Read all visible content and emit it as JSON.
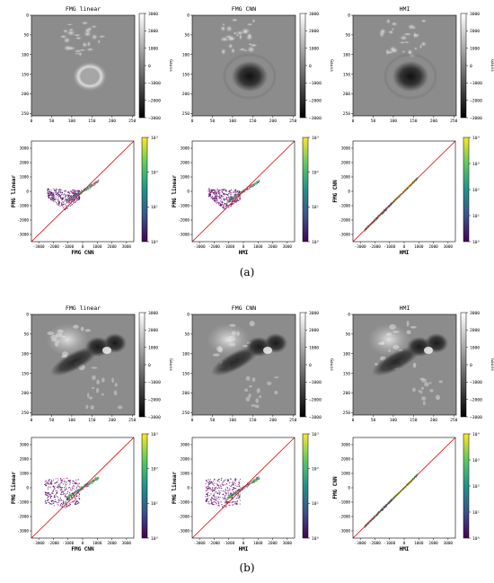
{
  "captions": [
    "(a)",
    "(b)"
  ],
  "colorbars": {
    "map": {
      "ticks": [
        "3000",
        "2000",
        "1000",
        "0",
        "−1000",
        "−2000",
        "−3000"
      ],
      "unit": "Gauss"
    },
    "density": {
      "ticks": [
        "10³",
        "10²",
        "10¹",
        "10⁰"
      ],
      "ticks_hmi": [
        "10⁴",
        "10³",
        "10²",
        "10¹",
        "10⁰"
      ]
    }
  },
  "chart_data": [
    {
      "panel": "a",
      "type": "heatmap",
      "title": "FMG linear",
      "xticks": [
        "0",
        "50",
        "100",
        "150",
        "200",
        "250"
      ],
      "yticks": [
        "250",
        "200",
        "150",
        "100",
        "50",
        "0"
      ],
      "xlim": [
        0,
        256
      ],
      "ylim": [
        0,
        256
      ],
      "colorbar_range": [
        -3000,
        3000
      ],
      "colorbar_label": "Gauss"
    },
    {
      "panel": "a",
      "type": "heatmap",
      "title": "FMG CNN",
      "xticks": [
        "0",
        "50",
        "100",
        "150",
        "200",
        "250"
      ],
      "yticks": [
        "250",
        "200",
        "150",
        "100",
        "50",
        "0"
      ],
      "xlim": [
        0,
        256
      ],
      "ylim": [
        0,
        256
      ],
      "colorbar_range": [
        -3000,
        3000
      ],
      "colorbar_label": "Gauss"
    },
    {
      "panel": "a",
      "type": "heatmap",
      "title": "HMI",
      "xticks": [
        "0",
        "50",
        "100",
        "150",
        "200",
        "250"
      ],
      "yticks": [
        "250",
        "200",
        "150",
        "100",
        "50",
        "0"
      ],
      "xlim": [
        0,
        256
      ],
      "ylim": [
        0,
        256
      ],
      "colorbar_range": [
        -3000,
        3000
      ],
      "colorbar_label": "Gauss"
    },
    {
      "panel": "a",
      "type": "scatter",
      "xlabel": "FMG CNN",
      "ylabel": "FMG linear",
      "xticks": [
        "-3000",
        "-2000",
        "-1000",
        "0",
        "1000",
        "2000",
        "3000"
      ],
      "yticks": [
        "3000",
        "2000",
        "1000",
        "0",
        "-1000",
        "-2000",
        "-3000"
      ],
      "xlim": [
        -3500,
        3500
      ],
      "ylim": [
        -3500,
        3500
      ],
      "colorbar_ticks": [
        "10³",
        "10²",
        "10¹",
        "10⁰"
      ]
    },
    {
      "panel": "a",
      "type": "scatter",
      "xlabel": "HMI",
      "ylabel": "FMG linear",
      "xticks": [
        "-3000",
        "-2000",
        "-1000",
        "0",
        "1000",
        "2000",
        "3000"
      ],
      "yticks": [
        "3000",
        "2000",
        "1000",
        "0",
        "-1000",
        "-2000",
        "-3000"
      ],
      "xlim": [
        -3500,
        3500
      ],
      "ylim": [
        -3500,
        3500
      ],
      "colorbar_ticks": [
        "10³",
        "10²",
        "10¹",
        "10⁰"
      ]
    },
    {
      "panel": "a",
      "type": "scatter",
      "xlabel": "HMI",
      "ylabel": "FMG CNN",
      "xticks": [
        "-3000",
        "-2000",
        "-1000",
        "0",
        "1000",
        "2000",
        "3000"
      ],
      "yticks": [
        "3000",
        "2000",
        "1000",
        "0",
        "-1000",
        "-2000",
        "-3000"
      ],
      "xlim": [
        -3500,
        3500
      ],
      "ylim": [
        -3500,
        3500
      ],
      "colorbar_ticks": [
        "10⁴",
        "10³",
        "10²",
        "10¹",
        "10⁰"
      ]
    },
    {
      "panel": "b",
      "type": "heatmap",
      "title": "FMG linear",
      "xticks": [
        "0",
        "50",
        "100",
        "150",
        "200",
        "250"
      ],
      "yticks": [
        "250",
        "200",
        "150",
        "100",
        "50",
        "0"
      ],
      "xlim": [
        0,
        256
      ],
      "ylim": [
        0,
        256
      ],
      "colorbar_range": [
        -3000,
        3000
      ],
      "colorbar_label": "Gauss"
    },
    {
      "panel": "b",
      "type": "heatmap",
      "title": "FMG CNN",
      "xticks": [
        "0",
        "50",
        "100",
        "150",
        "200",
        "250"
      ],
      "yticks": [
        "250",
        "200",
        "150",
        "100",
        "50",
        "0"
      ],
      "xlim": [
        0,
        256
      ],
      "ylim": [
        0,
        256
      ],
      "colorbar_range": [
        -3000,
        3000
      ],
      "colorbar_label": "Gauss"
    },
    {
      "panel": "b",
      "type": "heatmap",
      "title": "HMI",
      "xticks": [
        "0",
        "50",
        "100",
        "150",
        "200",
        "250"
      ],
      "yticks": [
        "250",
        "200",
        "150",
        "100",
        "50",
        "0"
      ],
      "xlim": [
        0,
        256
      ],
      "ylim": [
        0,
        256
      ],
      "colorbar_range": [
        -3000,
        3000
      ],
      "colorbar_label": "Gauss"
    },
    {
      "panel": "b",
      "type": "scatter",
      "xlabel": "FMG CNN",
      "ylabel": "FMG linear",
      "xticks": [
        "-3000",
        "-2000",
        "-1000",
        "0",
        "1000",
        "2000",
        "3000"
      ],
      "yticks": [
        "3000",
        "2000",
        "1000",
        "0",
        "-1000",
        "-2000",
        "-3000"
      ],
      "xlim": [
        -3500,
        3500
      ],
      "ylim": [
        -3500,
        3500
      ],
      "colorbar_ticks": [
        "10³",
        "10²",
        "10¹",
        "10⁰"
      ]
    },
    {
      "panel": "b",
      "type": "scatter",
      "xlabel": "HMI",
      "ylabel": "FMG linear",
      "xticks": [
        "-3000",
        "-2000",
        "-1000",
        "0",
        "1000",
        "2000",
        "3000"
      ],
      "yticks": [
        "3000",
        "2000",
        "1000",
        "0",
        "-1000",
        "-2000",
        "-3000"
      ],
      "xlim": [
        -3500,
        3500
      ],
      "ylim": [
        -3500,
        3500
      ],
      "colorbar_ticks": [
        "10³",
        "10²",
        "10¹",
        "10⁰"
      ]
    },
    {
      "panel": "b",
      "type": "scatter",
      "xlabel": "HMI",
      "ylabel": "FMG CNN",
      "xticks": [
        "-3000",
        "-2000",
        "-1000",
        "0",
        "1000",
        "2000",
        "3000"
      ],
      "yticks": [
        "3000",
        "2000",
        "1000",
        "0",
        "-1000",
        "-2000",
        "-3000"
      ],
      "xlim": [
        -3500,
        3500
      ],
      "ylim": [
        -3500,
        3500
      ],
      "colorbar_ticks": [
        "10⁴",
        "10³",
        "10²",
        "10¹",
        "10⁰"
      ]
    }
  ]
}
